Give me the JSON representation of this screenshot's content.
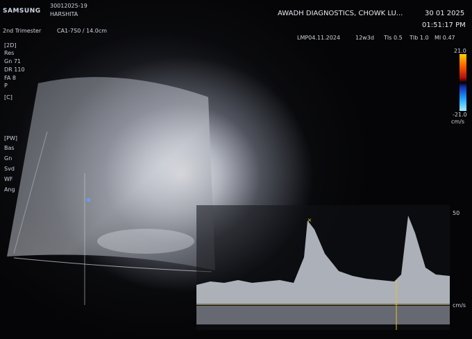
{
  "header": {
    "brand": "SAMSUNG",
    "study_id": "30012025-19",
    "patient_name": "HARSHITA",
    "preset": "2nd Trimester",
    "probe": "CA1-7S0 / 14.0cm",
    "clinic": "AWADH DIAGNOSTICS, CHOWK LU...",
    "date": "30 01 2025",
    "time": "01:51:17 PM",
    "lmp": "LMP04.11.2024",
    "ga": "12w3d",
    "tis": "TIs 0.5",
    "tib": "TIb 1.0",
    "mi": "MI 0.47"
  },
  "left_panel": {
    "mode_2d": "[2D]",
    "res": "Res",
    "gn": "Gn 71",
    "dr": "DR 110",
    "fa": "FA 8",
    "p": "P",
    "mode_c": "[C]",
    "pw": "[PW]",
    "lines": [
      "Bas",
      "Gn",
      "Svd",
      "WF",
      "Ang"
    ]
  },
  "color_scale": {
    "top": "21.0",
    "bottom": "-21.0",
    "unit": "cm/s"
  },
  "doppler_scale": {
    "mark": "50",
    "unit": "cm/s"
  },
  "colors": {
    "trace": "#cfd4da",
    "baseline": "#c8b87a",
    "marker": "#e8c030"
  }
}
